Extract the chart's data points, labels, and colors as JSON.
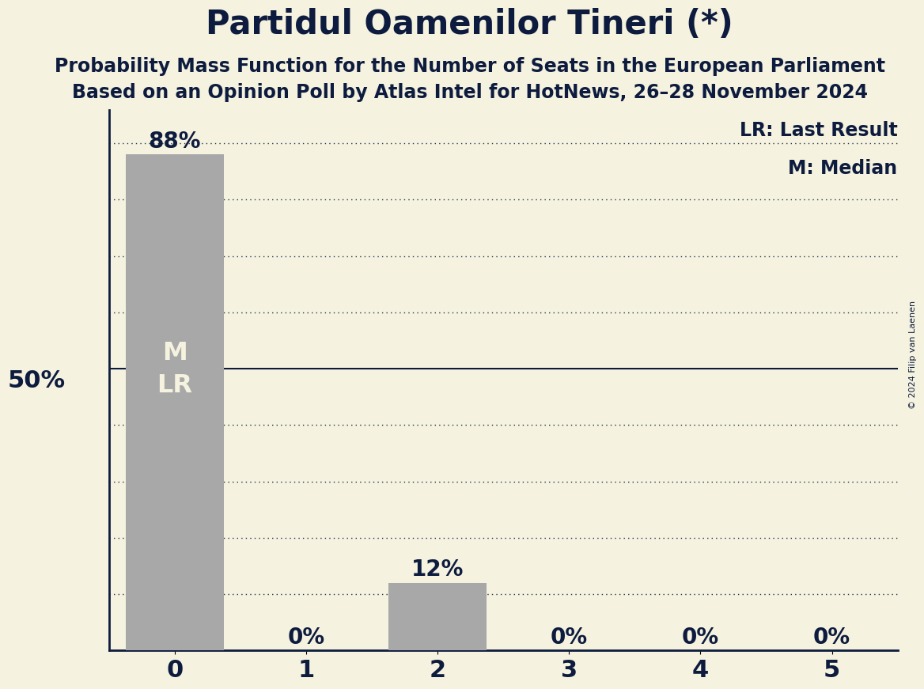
{
  "title": "Partidul Oamenilor Tineri (*)",
  "subtitle1": "Probability Mass Function for the Number of Seats in the European Parliament",
  "subtitle2": "Based on an Opinion Poll by Atlas Intel for HotNews, 26–28 November 2024",
  "copyright": "© 2024 Filip van Laenen",
  "seats": [
    0,
    1,
    2,
    3,
    4,
    5
  ],
  "probabilities": [
    0.88,
    0.0,
    0.12,
    0.0,
    0.0,
    0.0
  ],
  "bar_color": "#a8a8a8",
  "bar_labels": [
    "88%",
    "0%",
    "12%",
    "0%",
    "0%",
    "0%"
  ],
  "median": 0,
  "last_result": 0,
  "background_color": "#f5f2df",
  "text_color": "#0d1b3e",
  "legend_lr": "LR: Last Result",
  "legend_m": "M: Median",
  "ylabel_text": "50%",
  "ylabel_value": 0.5,
  "grid_yticks": [
    0.1,
    0.2,
    0.3,
    0.4,
    0.5,
    0.6,
    0.7,
    0.8,
    0.9
  ],
  "ylim": [
    0,
    0.96
  ],
  "title_fontsize": 30,
  "subtitle_fontsize": 17,
  "bar_label_fontsize": 20,
  "axis_label_fontsize": 22,
  "tick_fontsize": 22,
  "legend_fontsize": 17,
  "inside_label_fontsize": 23
}
